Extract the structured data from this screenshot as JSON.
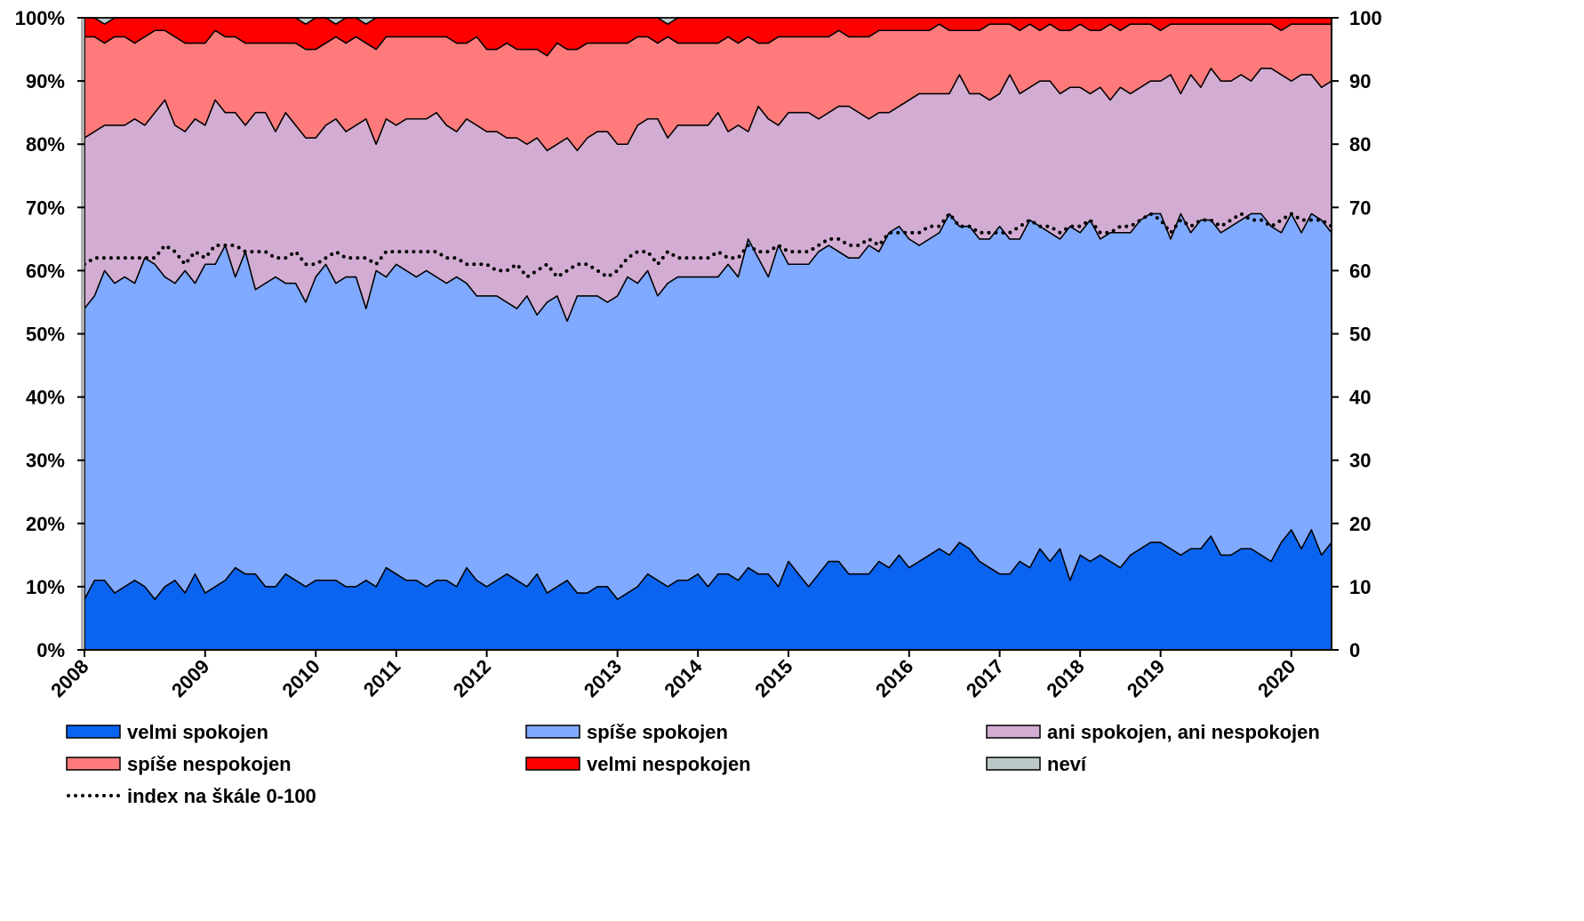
{
  "chart_data": {
    "type": "area",
    "stacked": true,
    "categories": [
      "2008",
      null,
      null,
      null,
      null,
      null,
      null,
      null,
      null,
      null,
      null,
      null,
      "2009",
      null,
      null,
      null,
      null,
      null,
      null,
      null,
      null,
      null,
      null,
      "2010",
      null,
      null,
      null,
      null,
      null,
      null,
      null,
      "2011",
      null,
      null,
      null,
      null,
      null,
      null,
      null,
      null,
      "2012",
      null,
      null,
      null,
      null,
      null,
      null,
      null,
      null,
      null,
      null,
      null,
      null,
      "2013",
      null,
      null,
      null,
      null,
      null,
      null,
      null,
      "2014",
      null,
      null,
      null,
      null,
      null,
      null,
      null,
      null,
      "2015",
      null,
      null,
      null,
      null,
      null,
      null,
      null,
      null,
      null,
      null,
      null,
      "2016",
      null,
      null,
      null,
      null,
      null,
      null,
      null,
      null,
      "2017",
      null,
      null,
      null,
      null,
      null,
      null,
      null,
      "2018",
      null,
      null,
      null,
      null,
      null,
      null,
      null,
      "2019",
      null,
      null,
      null,
      null,
      null,
      null,
      null,
      null,
      null,
      null,
      null,
      null,
      "2020",
      null,
      null,
      null,
      null
    ],
    "ylim": [
      0,
      100
    ],
    "yticks": [
      {
        "value": 0,
        "label": "0%"
      },
      {
        "value": 10,
        "label": "10%"
      },
      {
        "value": 20,
        "label": "20%"
      },
      {
        "value": 30,
        "label": "30%"
      },
      {
        "value": 40,
        "label": "40%"
      },
      {
        "value": 50,
        "label": "50%"
      },
      {
        "value": 60,
        "label": "60%"
      },
      {
        "value": 70,
        "label": "70%"
      },
      {
        "value": 80,
        "label": "80%"
      },
      {
        "value": 90,
        "label": "90%"
      },
      {
        "value": 100,
        "label": "100%"
      }
    ],
    "y2lim": [
      0,
      100
    ],
    "y2ticks": [
      0,
      10,
      20,
      30,
      40,
      50,
      60,
      70,
      80,
      90,
      100
    ],
    "series": [
      {
        "name": "velmi spokojen",
        "color": "#0a64f0",
        "values": [
          8,
          11,
          11,
          9,
          10,
          11,
          10,
          8,
          10,
          11,
          9,
          12,
          9,
          10,
          11,
          13,
          12,
          12,
          10,
          10,
          12,
          11,
          10,
          11,
          11,
          11,
          10,
          10,
          11,
          10,
          13,
          12,
          11,
          11,
          10,
          11,
          11,
          10,
          13,
          11,
          10,
          11,
          12,
          11,
          10,
          12,
          9,
          10,
          11,
          9,
          9,
          10,
          10,
          8,
          9,
          10,
          12,
          11,
          10,
          11,
          11,
          12,
          10,
          12,
          12,
          11,
          13,
          12,
          12,
          10,
          14,
          12,
          10,
          12,
          14,
          14,
          12,
          12,
          12,
          14,
          13,
          15,
          13,
          14,
          15,
          16,
          15,
          17,
          16,
          14,
          13,
          12,
          12,
          14,
          13,
          16,
          14,
          16,
          11,
          15,
          14,
          15,
          14,
          13,
          15,
          16,
          17,
          17,
          16,
          15,
          16,
          16,
          18,
          15,
          15,
          16,
          16,
          15,
          14,
          17,
          19,
          16,
          19,
          15,
          17
        ]
      },
      {
        "name": "spíše spokojen",
        "color": "#80aaff",
        "values": [
          46,
          45,
          49,
          49,
          49,
          47,
          52,
          53,
          49,
          47,
          51,
          46,
          52,
          51,
          53,
          46,
          51,
          45,
          48,
          49,
          46,
          47,
          45,
          48,
          50,
          47,
          49,
          49,
          43,
          50,
          46,
          49,
          49,
          48,
          50,
          48,
          47,
          49,
          45,
          45,
          46,
          45,
          43,
          43,
          46,
          41,
          46,
          46,
          41,
          47,
          47,
          46,
          45,
          48,
          50,
          48,
          48,
          45,
          48,
          48,
          48,
          47,
          49,
          47,
          49,
          48,
          52,
          50,
          47,
          54,
          47,
          49,
          51,
          51,
          50,
          49,
          50,
          50,
          52,
          49,
          53,
          52,
          52,
          50,
          50,
          50,
          54,
          50,
          51,
          51,
          52,
          55,
          53,
          51,
          55,
          51,
          52,
          49,
          56,
          51,
          54,
          50,
          52,
          53,
          51,
          52,
          52,
          52,
          49,
          54,
          50,
          52,
          50,
          51,
          52,
          52,
          53,
          54,
          53,
          49,
          50,
          50,
          50,
          53,
          49
        ]
      },
      {
        "name": "ani spokojen, ani nespokojen",
        "color": "#d2acd2",
        "values": [
          27,
          26,
          23,
          25,
          24,
          26,
          21,
          24,
          28,
          25,
          22,
          26,
          22,
          26,
          21,
          26,
          20,
          28,
          27,
          23,
          27,
          25,
          26,
          22,
          22,
          26,
          23,
          24,
          30,
          20,
          25,
          22,
          24,
          25,
          24,
          26,
          25,
          23,
          26,
          27,
          26,
          26,
          26,
          27,
          24,
          28,
          24,
          24,
          29,
          23,
          25,
          26,
          27,
          24,
          21,
          25,
          24,
          28,
          23,
          24,
          24,
          24,
          24,
          26,
          21,
          24,
          17,
          24,
          25,
          19,
          24,
          24,
          24,
          21,
          21,
          23,
          24,
          23,
          20,
          22,
          19,
          19,
          22,
          24,
          23,
          22,
          19,
          24,
          21,
          23,
          22,
          21,
          26,
          23,
          21,
          23,
          24,
          23,
          22,
          23,
          20,
          24,
          21,
          23,
          22,
          21,
          21,
          21,
          26,
          19,
          25,
          21,
          24,
          24,
          23,
          23,
          21,
          23,
          25,
          25,
          21,
          25,
          22,
          21,
          24
        ]
      },
      {
        "name": "spíše nespokojen",
        "color": "#ff7b7b",
        "values": [
          16,
          15,
          13,
          14,
          14,
          12,
          14,
          13,
          11,
          14,
          14,
          12,
          13,
          11,
          12,
          12,
          13,
          11,
          11,
          14,
          11,
          13,
          14,
          14,
          13,
          13,
          14,
          14,
          12,
          15,
          13,
          14,
          13,
          13,
          13,
          12,
          14,
          14,
          12,
          14,
          13,
          13,
          15,
          14,
          15,
          14,
          15,
          16,
          14,
          16,
          15,
          14,
          14,
          16,
          16,
          14,
          13,
          12,
          16,
          13,
          13,
          13,
          13,
          11,
          15,
          13,
          15,
          10,
          12,
          14,
          12,
          12,
          12,
          13,
          12,
          12,
          11,
          12,
          13,
          13,
          13,
          12,
          11,
          10,
          10,
          11,
          10,
          7,
          10,
          10,
          12,
          11,
          8,
          10,
          10,
          8,
          9,
          10,
          9,
          10,
          10,
          9,
          12,
          9,
          11,
          10,
          9,
          8,
          8,
          11,
          8,
          10,
          7,
          9,
          9,
          8,
          9,
          7,
          7,
          7,
          9,
          8,
          8,
          10,
          9
        ]
      },
      {
        "name": "velmi nespokojen",
        "color": "#ff0000",
        "values": [
          3,
          3,
          3,
          3,
          3,
          4,
          3,
          2,
          2,
          3,
          4,
          4,
          4,
          2,
          3,
          3,
          4,
          4,
          4,
          4,
          4,
          4,
          4,
          5,
          4,
          2,
          4,
          3,
          3,
          5,
          3,
          3,
          3,
          3,
          3,
          3,
          3,
          4,
          4,
          3,
          5,
          5,
          4,
          5,
          5,
          5,
          6,
          4,
          5,
          5,
          4,
          4,
          4,
          4,
          4,
          3,
          3,
          4,
          2,
          4,
          4,
          4,
          4,
          4,
          3,
          4,
          3,
          4,
          4,
          3,
          3,
          3,
          3,
          3,
          3,
          2,
          3,
          3,
          3,
          2,
          2,
          2,
          2,
          2,
          2,
          1,
          2,
          2,
          2,
          2,
          1,
          1,
          1,
          2,
          1,
          2,
          1,
          2,
          2,
          1,
          2,
          2,
          1,
          2,
          1,
          1,
          1,
          2,
          1,
          1,
          1,
          1,
          1,
          1,
          1,
          1,
          1,
          1,
          1,
          2,
          1,
          1,
          1,
          1,
          1
        ]
      },
      {
        "name": "neví",
        "color": "#bcc8c8",
        "values": [
          0,
          0,
          1,
          0,
          0,
          0,
          0,
          0,
          0,
          0,
          0,
          0,
          0,
          0,
          0,
          0,
          0,
          0,
          0,
          0,
          0,
          0,
          1,
          0,
          0,
          1,
          0,
          0,
          1,
          0,
          0,
          0,
          0,
          0,
          0,
          0,
          0,
          0,
          0,
          0,
          0,
          0,
          0,
          0,
          0,
          0,
          0,
          0,
          0,
          0,
          0,
          0,
          0,
          0,
          0,
          0,
          0,
          0,
          1,
          0,
          0,
          0,
          0,
          0,
          0,
          0,
          0,
          0,
          0,
          0,
          0,
          0,
          0,
          0,
          0,
          0,
          0,
          0,
          0,
          0,
          0,
          0,
          0,
          0,
          0,
          0,
          0,
          0,
          0,
          0,
          0,
          0,
          0,
          0,
          0,
          0,
          0,
          0,
          0,
          0,
          0,
          0,
          0,
          0,
          0,
          0,
          0,
          0,
          0,
          0,
          0,
          0,
          0,
          0,
          0,
          0,
          0,
          0,
          0,
          0,
          0,
          0,
          0,
          0,
          0
        ]
      },
      {
        "name": "index na škále 0-100",
        "color": "#000000",
        "axis": "y2",
        "dash": "dotted",
        "values": [
          61,
          62,
          62,
          62,
          62,
          62,
          62,
          62,
          64,
          63,
          61,
          63,
          62,
          64,
          64,
          64,
          63,
          63,
          63,
          62,
          62,
          63,
          61,
          61,
          62,
          63,
          62,
          62,
          62,
          61,
          63,
          63,
          63,
          63,
          63,
          63,
          62,
          62,
          61,
          61,
          61,
          60,
          60,
          61,
          59,
          60,
          61,
          59,
          60,
          61,
          61,
          60,
          59,
          60,
          62,
          63,
          63,
          61,
          63,
          62,
          62,
          62,
          62,
          63,
          62,
          62,
          64,
          63,
          63,
          64,
          63,
          63,
          63,
          64,
          65,
          65,
          64,
          64,
          65,
          64,
          66,
          66,
          66,
          66,
          67,
          67,
          69,
          67,
          67,
          66,
          66,
          66,
          66,
          67,
          68,
          67,
          67,
          66,
          67,
          67,
          68,
          66,
          66,
          67,
          67,
          68,
          69,
          68,
          66,
          68,
          67,
          68,
          68,
          67,
          68,
          69,
          68,
          68,
          67,
          68,
          69,
          68,
          68,
          68,
          67
        ]
      }
    ]
  }
}
